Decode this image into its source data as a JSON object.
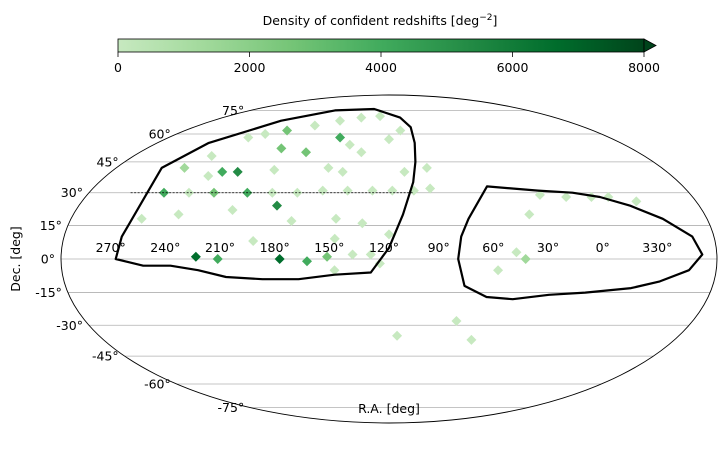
{
  "chart_data": {
    "type": "heatmap",
    "projection": "mollweide",
    "colorbar": {
      "label_main": "Density of confident redshifts [deg",
      "label_exp": "−2",
      "label_close": "]",
      "ticks": [
        "0",
        "2000",
        "4000",
        "6000",
        "8000"
      ],
      "vmin": 0,
      "vmax": 8000,
      "extend": "max",
      "colors": [
        "#c7e9c0",
        "#a1d99b",
        "#74c476",
        "#41ab5d",
        "#238b45",
        "#006d2c",
        "#00441b"
      ]
    },
    "xlabel": "R.A. [deg]",
    "ylabel": "Dec. [deg]",
    "ra_ticks": [
      "270°",
      "240°",
      "210°",
      "180°",
      "150°",
      "120°",
      "90°",
      "60°",
      "30°",
      "0°",
      "330°"
    ],
    "dec_ticks": [
      "75°",
      "60°",
      "45°",
      "30°",
      "15°",
      "0°",
      "-15°",
      "-30°",
      "-45°",
      "-60°",
      "-75°"
    ],
    "grid": true,
    "density_cells": [
      {
        "ra": 150,
        "dec": 70,
        "v": 400
      },
      {
        "ra": 130,
        "dec": 71,
        "v": 300
      },
      {
        "ra": 170,
        "dec": 68,
        "v": 350
      },
      {
        "ra": 190,
        "dec": 65,
        "v": 500
      },
      {
        "ra": 210,
        "dec": 62,
        "v": 2500
      },
      {
        "ra": 225,
        "dec": 60,
        "v": 400
      },
      {
        "ra": 235,
        "dec": 58,
        "v": 450
      },
      {
        "ra": 160,
        "dec": 58,
        "v": 3500
      },
      {
        "ra": 150,
        "dec": 54,
        "v": 500
      },
      {
        "ra": 140,
        "dec": 50,
        "v": 600
      },
      {
        "ra": 120,
        "dec": 57,
        "v": 300
      },
      {
        "ra": 110,
        "dec": 62,
        "v": 350
      },
      {
        "ra": 200,
        "dec": 52,
        "v": 3000
      },
      {
        "ra": 180,
        "dec": 50,
        "v": 2800
      },
      {
        "ra": 245,
        "dec": 48,
        "v": 300
      },
      {
        "ra": 255,
        "dec": 42,
        "v": 700
      },
      {
        "ra": 228,
        "dec": 40,
        "v": 4500
      },
      {
        "ra": 218,
        "dec": 40,
        "v": 5000
      },
      {
        "ra": 235,
        "dec": 38,
        "v": 300
      },
      {
        "ra": 195,
        "dec": 41,
        "v": 500
      },
      {
        "ra": 160,
        "dec": 42,
        "v": 600
      },
      {
        "ra": 150,
        "dec": 40,
        "v": 300
      },
      {
        "ra": 110,
        "dec": 40,
        "v": 350
      },
      {
        "ra": 95,
        "dec": 42,
        "v": 400
      },
      {
        "ra": 255,
        "dec": 30,
        "v": 3500
      },
      {
        "ra": 225,
        "dec": 30,
        "v": 3000
      },
      {
        "ra": 205,
        "dec": 30,
        "v": 4000
      },
      {
        "ra": 240,
        "dec": 30,
        "v": 300
      },
      {
        "ra": 190,
        "dec": 30,
        "v": 350
      },
      {
        "ra": 175,
        "dec": 30,
        "v": 400
      },
      {
        "ra": 160,
        "dec": 31,
        "v": 300
      },
      {
        "ra": 145,
        "dec": 31,
        "v": 350
      },
      {
        "ra": 130,
        "dec": 31,
        "v": 400
      },
      {
        "ra": 118,
        "dec": 31,
        "v": 500
      },
      {
        "ra": 105,
        "dec": 31,
        "v": 450
      },
      {
        "ra": 95,
        "dec": 32,
        "v": 400
      },
      {
        "ra": 185,
        "dec": 24,
        "v": 5500
      },
      {
        "ra": 210,
        "dec": 22,
        "v": 400
      },
      {
        "ra": 240,
        "dec": 20,
        "v": 300
      },
      {
        "ra": 260,
        "dec": 18,
        "v": 500
      },
      {
        "ra": 175,
        "dec": 17,
        "v": 400
      },
      {
        "ra": 150,
        "dec": 18,
        "v": 500
      },
      {
        "ra": 135,
        "dec": 16,
        "v": 350
      },
      {
        "ra": 195,
        "dec": 8,
        "v": 300
      },
      {
        "ra": 150,
        "dec": 9,
        "v": 400
      },
      {
        "ra": 120,
        "dec": 11,
        "v": 300
      },
      {
        "ra": 226,
        "dec": 1,
        "v": 6500
      },
      {
        "ra": 214,
        "dec": 0,
        "v": 4500
      },
      {
        "ra": 180,
        "dec": 0,
        "v": 6000
      },
      {
        "ra": 165,
        "dec": -1,
        "v": 4500
      },
      {
        "ra": 154,
        "dec": 1,
        "v": 2500
      },
      {
        "ra": 140,
        "dec": 2,
        "v": 500
      },
      {
        "ra": 130,
        "dec": 2,
        "v": 400
      },
      {
        "ra": 125,
        "dec": -2,
        "v": 300
      },
      {
        "ra": 150,
        "dec": -5,
        "v": 350
      },
      {
        "ra": 30,
        "dec": 29,
        "v": 400
      },
      {
        "ra": 15,
        "dec": 28,
        "v": 350
      },
      {
        "ra": 0,
        "dec": 28,
        "v": 450
      },
      {
        "ra": 350,
        "dec": 28,
        "v": 400
      },
      {
        "ra": 335,
        "dec": 26,
        "v": 350
      },
      {
        "ra": 40,
        "dec": 20,
        "v": 500
      },
      {
        "ra": 45,
        "dec": 0,
        "v": 800
      },
      {
        "ra": 50,
        "dec": 3,
        "v": 600
      },
      {
        "ra": 60,
        "dec": -5,
        "v": 400
      },
      {
        "ra": 80,
        "dec": -28,
        "v": 300
      },
      {
        "ra": 68,
        "dec": -37,
        "v": 300
      },
      {
        "ra": 115,
        "dec": -35,
        "v": 500
      }
    ],
    "survey_footprint": [
      [
        [
          265,
          30
        ],
        [
          268,
          10
        ],
        [
          270,
          0
        ],
        [
          255,
          -3
        ],
        [
          240,
          -3
        ],
        [
          225,
          -5
        ],
        [
          210,
          -8
        ],
        [
          190,
          -9
        ],
        [
          170,
          -9
        ],
        [
          150,
          -7
        ],
        [
          130,
          -6
        ],
        [
          120,
          5
        ],
        [
          112,
          20
        ],
        [
          105,
          35
        ],
        [
          102,
          45
        ],
        [
          100,
          55
        ],
        [
          100,
          64
        ],
        [
          108,
          70
        ],
        [
          140,
          76
        ],
        [
          190,
          75
        ],
        [
          230,
          68
        ],
        [
          260,
          55
        ],
        [
          270,
          42
        ],
        [
          265,
          30
        ]
      ],
      [
        [
          60,
          33
        ],
        [
          75,
          18
        ],
        [
          80,
          10
        ],
        [
          82,
          0
        ],
        [
          78,
          -12
        ],
        [
          65,
          -17
        ],
        [
          50,
          -18
        ],
        [
          30,
          -16
        ],
        [
          10,
          -15
        ],
        [
          345,
          -13
        ],
        [
          330,
          -10
        ],
        [
          315,
          -5
        ],
        [
          308,
          2
        ],
        [
          312,
          10
        ],
        [
          325,
          18
        ],
        [
          340,
          24
        ],
        [
          355,
          28
        ],
        [
          10,
          30
        ],
        [
          30,
          31
        ],
        [
          45,
          32
        ],
        [
          60,
          33
        ]
      ]
    ],
    "galactic_plane_style": "thin",
    "reference_line_dec": 30,
    "reference_line_ra_range": [
      275,
      105
    ]
  }
}
